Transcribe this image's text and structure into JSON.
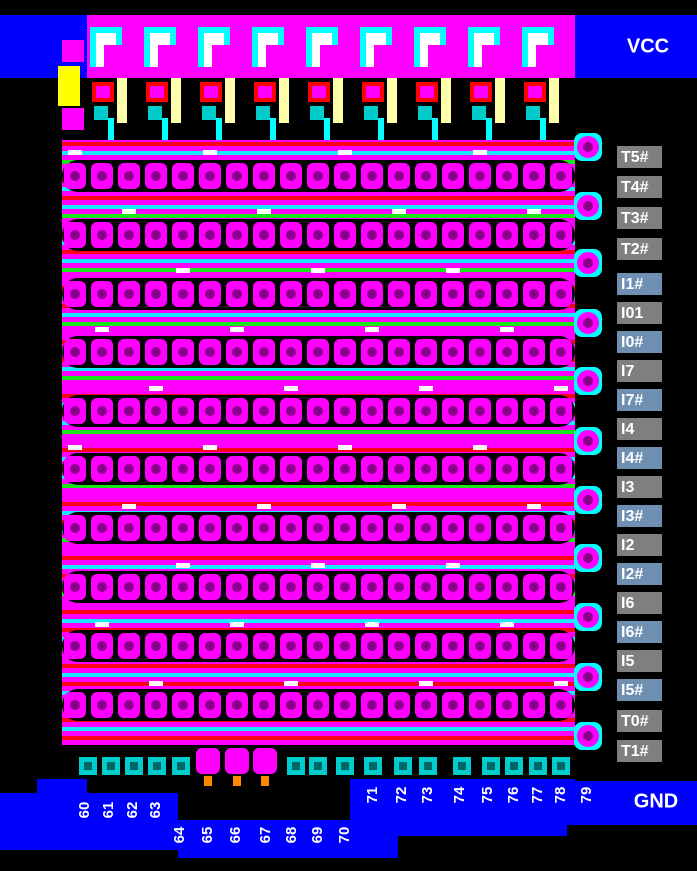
{
  "header": {
    "vcc": "VCC",
    "gnd": "GND"
  },
  "side_labels": [
    {
      "text": "T5#",
      "color": "#7f7f7f"
    },
    {
      "text": "T4#",
      "color": "#7f7f7f"
    },
    {
      "text": "T3#",
      "color": "#7f7f7f"
    },
    {
      "text": "T2#",
      "color": "#7f7f7f"
    },
    {
      "text": "I1#",
      "color": "#6e8eb2"
    },
    {
      "text": "I01",
      "color": "#7f7f7f"
    },
    {
      "text": "I0#",
      "color": "#6e8eb2"
    },
    {
      "text": "I7",
      "color": "#7f7f7f"
    },
    {
      "text": "I7#",
      "color": "#6e8eb2"
    },
    {
      "text": "I4",
      "color": "#7f7f7f"
    },
    {
      "text": "I4#",
      "color": "#6e8eb2"
    },
    {
      "text": "I3",
      "color": "#7f7f7f"
    },
    {
      "text": "I3#",
      "color": "#6e8eb2"
    },
    {
      "text": "I2",
      "color": "#7f7f7f"
    },
    {
      "text": "I2#",
      "color": "#6e8eb2"
    },
    {
      "text": "I6",
      "color": "#7f7f7f"
    },
    {
      "text": "I6#",
      "color": "#6e8eb2"
    },
    {
      "text": "I5",
      "color": "#7f7f7f"
    },
    {
      "text": "I5#",
      "color": "#6e8eb2"
    },
    {
      "text": "T0#",
      "color": "#7f7f7f"
    },
    {
      "text": "T1#",
      "color": "#7f7f7f"
    }
  ],
  "pin_numbers": [
    "60",
    "61",
    "62",
    "63",
    "64",
    "65",
    "66",
    "67",
    "68",
    "69",
    "70",
    "71",
    "72",
    "73",
    "74",
    "75",
    "76",
    "77",
    "78",
    "79"
  ]
}
